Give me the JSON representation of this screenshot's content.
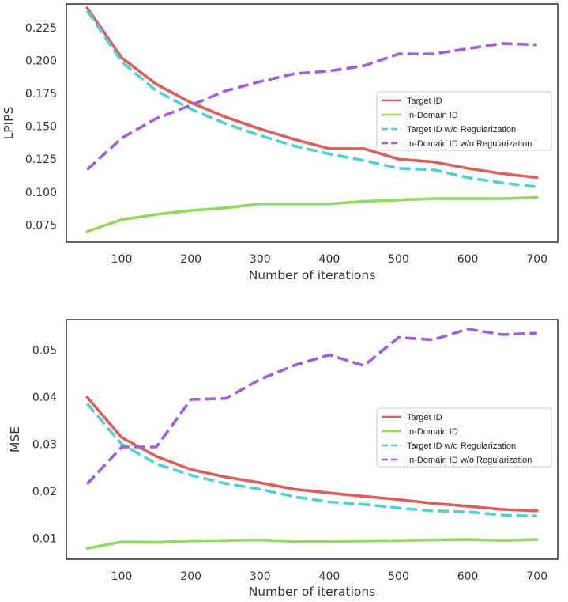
{
  "chart_data": [
    {
      "type": "line",
      "title": "",
      "xlabel": "Number of iterations",
      "ylabel": "LPIPS",
      "xlim": [
        20,
        730
      ],
      "ylim": [
        0.062,
        0.243
      ],
      "xticks": [
        100,
        200,
        300,
        400,
        500,
        600,
        700
      ],
      "xtick_labels": [
        "100",
        "200",
        "300",
        "400",
        "500",
        "600",
        "700"
      ],
      "yticks": [
        0.075,
        0.1,
        0.125,
        0.15,
        0.175,
        0.2,
        0.225
      ],
      "ytick_labels": [
        "0.075",
        "0.100",
        "0.125",
        "0.150",
        "0.175",
        "0.200",
        "0.225"
      ],
      "grid": false,
      "legend": "center-right",
      "x": [
        50,
        100,
        150,
        200,
        250,
        300,
        350,
        400,
        450,
        500,
        550,
        600,
        650,
        700
      ],
      "series": [
        {
          "name": "Target ID",
          "color": "#de5f5a",
          "dash": "solid",
          "values": [
            0.24,
            0.202,
            0.182,
            0.168,
            0.157,
            0.148,
            0.14,
            0.133,
            0.133,
            0.125,
            0.123,
            0.118,
            0.114,
            0.111
          ]
        },
        {
          "name": "In-Domain ID",
          "color": "#8fdc5d",
          "dash": "solid",
          "values": [
            0.07,
            0.079,
            0.083,
            0.086,
            0.088,
            0.091,
            0.091,
            0.091,
            0.093,
            0.094,
            0.095,
            0.095,
            0.095,
            0.096
          ]
        },
        {
          "name": "Target ID w/o Regularization",
          "color": "#4ed0d6",
          "dash": "dashed",
          "values": [
            0.238,
            0.199,
            0.177,
            0.163,
            0.152,
            0.143,
            0.135,
            0.129,
            0.124,
            0.118,
            0.117,
            0.111,
            0.107,
            0.104
          ]
        },
        {
          "name": "In-Domain ID w/o Regularization",
          "color": "#a35ce0",
          "dash": "dashed",
          "values": [
            0.117,
            0.141,
            0.156,
            0.166,
            0.177,
            0.184,
            0.19,
            0.192,
            0.196,
            0.205,
            0.205,
            0.209,
            0.213,
            0.212
          ]
        }
      ]
    },
    {
      "type": "line",
      "title": "",
      "xlabel": "Number of iterations",
      "ylabel": "MSE",
      "xlim": [
        20,
        730
      ],
      "ylim": [
        0.0055,
        0.0565
      ],
      "xticks": [
        100,
        200,
        300,
        400,
        500,
        600,
        700
      ],
      "xtick_labels": [
        "100",
        "200",
        "300",
        "400",
        "500",
        "600",
        "700"
      ],
      "yticks": [
        0.01,
        0.02,
        0.03,
        0.04,
        0.05
      ],
      "ytick_labels": [
        "0.01",
        "0.02",
        "0.03",
        "0.04",
        "0.05"
      ],
      "grid": false,
      "legend": "center-right",
      "x": [
        50,
        100,
        150,
        200,
        250,
        300,
        350,
        400,
        450,
        500,
        550,
        600,
        650,
        700
      ],
      "series": [
        {
          "name": "Target ID",
          "color": "#de5f5a",
          "dash": "solid",
          "values": [
            0.04,
            0.0314,
            0.0274,
            0.0246,
            0.023,
            0.0218,
            0.0204,
            0.0196,
            0.0189,
            0.0182,
            0.0174,
            0.0168,
            0.0161,
            0.0158
          ]
        },
        {
          "name": "In-Domain ID",
          "color": "#8fdc5d",
          "dash": "solid",
          "values": [
            0.0078,
            0.0092,
            0.0091,
            0.0094,
            0.0095,
            0.0096,
            0.0093,
            0.0093,
            0.0094,
            0.0095,
            0.0096,
            0.0097,
            0.0095,
            0.0097
          ]
        },
        {
          "name": "Target ID w/o Regularization",
          "color": "#4ed0d6",
          "dash": "dashed",
          "values": [
            0.0386,
            0.03,
            0.0258,
            0.0234,
            0.0216,
            0.0204,
            0.0188,
            0.0177,
            0.0172,
            0.0164,
            0.0158,
            0.0156,
            0.0149,
            0.0147
          ]
        },
        {
          "name": "In-Domain ID w/o Regularization",
          "color": "#a35ce0",
          "dash": "dashed",
          "values": [
            0.0215,
            0.0294,
            0.0294,
            0.0395,
            0.0397,
            0.0438,
            0.0468,
            0.049,
            0.0467,
            0.0527,
            0.0522,
            0.0545,
            0.0533,
            0.0536
          ]
        }
      ]
    }
  ]
}
